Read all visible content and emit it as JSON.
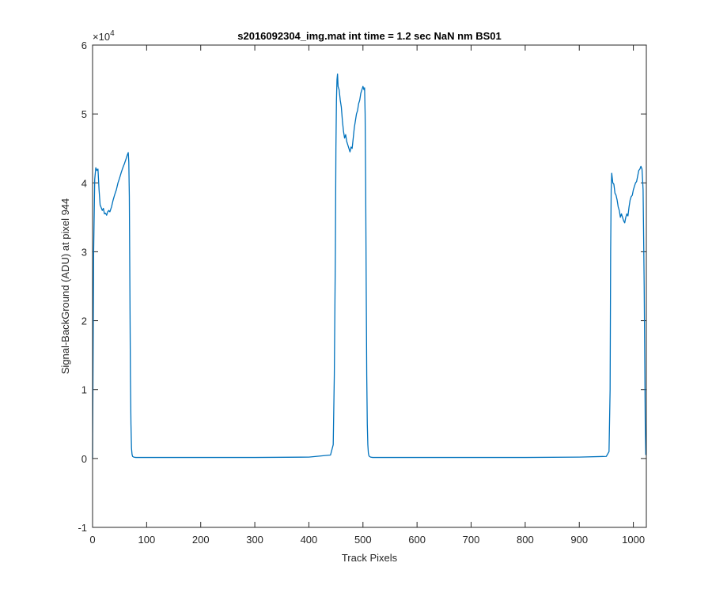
{
  "chart_data": {
    "type": "line",
    "title": "s2016092304_img.mat int time = 1.2 sec  NaN nm BS01",
    "xlabel": "Track Pixels",
    "ylabel": "Signal-BackGround (ADU) at pixel 944",
    "y_exponent_label": "×10",
    "y_exponent_power": "4",
    "xlim": [
      0,
      1024
    ],
    "ylim": [
      -10000,
      60000
    ],
    "x_ticks": [
      0,
      100,
      200,
      300,
      400,
      500,
      600,
      700,
      800,
      900,
      1000
    ],
    "x_tick_labels": [
      "0",
      "100",
      "200",
      "300",
      "400",
      "500",
      "600",
      "700",
      "800",
      "900",
      "1000"
    ],
    "y_ticks": [
      -10000,
      0,
      10000,
      20000,
      30000,
      40000,
      50000,
      60000
    ],
    "y_tick_labels": [
      "-1",
      "0",
      "1",
      "2",
      "3",
      "4",
      "5",
      "6"
    ],
    "grid": false,
    "line_color": "#0072BD",
    "series": [
      {
        "x": [
          0,
          2,
          4,
          6,
          8,
          10,
          12,
          14,
          16,
          18,
          20,
          22,
          24,
          26,
          28,
          30,
          32,
          35,
          38,
          41,
          44,
          47,
          50,
          53,
          56,
          59,
          62,
          64,
          66,
          67,
          68,
          69,
          70,
          71,
          72,
          73,
          74,
          76,
          80,
          100,
          200,
          300,
          400,
          440,
          445,
          447,
          449,
          450,
          451,
          452,
          453,
          454,
          456,
          458,
          460,
          462,
          464,
          466,
          468,
          470,
          472,
          474,
          476,
          478,
          480,
          482,
          484,
          486,
          488,
          490,
          492,
          494,
          496,
          498,
          500,
          502,
          503,
          504,
          505,
          506,
          507,
          508,
          509,
          510,
          511,
          512,
          514,
          518,
          530,
          600,
          700,
          800,
          900,
          950,
          955,
          957,
          958,
          959,
          960,
          962,
          964,
          966,
          968,
          970,
          972,
          974,
          976,
          978,
          980,
          982,
          984,
          986,
          988,
          990,
          992,
          994,
          996,
          998,
          1000,
          1002,
          1004,
          1006,
          1008,
          1010,
          1012,
          1014,
          1016,
          1018,
          1020,
          1022,
          1023
        ],
        "y": [
          0,
          30000,
          40500,
          42200,
          41800,
          42000,
          39000,
          36800,
          36400,
          36000,
          36300,
          35500,
          35600,
          35300,
          35800,
          36000,
          35800,
          36500,
          37500,
          38300,
          39000,
          40000,
          40700,
          41500,
          42200,
          42800,
          43500,
          44000,
          44400,
          43000,
          38000,
          25000,
          12000,
          5000,
          1500,
          600,
          300,
          200,
          150,
          150,
          150,
          150,
          200,
          500,
          2000,
          12000,
          30000,
          45000,
          52000,
          55000,
          55800,
          54000,
          53500,
          52000,
          51000,
          49000,
          47500,
          46500,
          47000,
          46000,
          45500,
          45000,
          44500,
          45200,
          45000,
          46500,
          48000,
          49000,
          50000,
          50500,
          51500,
          52000,
          53000,
          53500,
          54000,
          53500,
          53800,
          50000,
          40000,
          25000,
          12000,
          5000,
          2000,
          800,
          400,
          300,
          200,
          150,
          150,
          150,
          150,
          150,
          200,
          300,
          1000,
          10000,
          30000,
          39000,
          41400,
          40000,
          39800,
          38500,
          38200,
          37500,
          36500,
          36000,
          35000,
          35500,
          35000,
          34500,
          34200,
          35000,
          35500,
          35200,
          36500,
          37500,
          38000,
          38200,
          39000,
          39500,
          40000,
          40200,
          41000,
          41800,
          42000,
          42400,
          42000,
          39000,
          25000,
          5000,
          500
        ]
      }
    ]
  }
}
